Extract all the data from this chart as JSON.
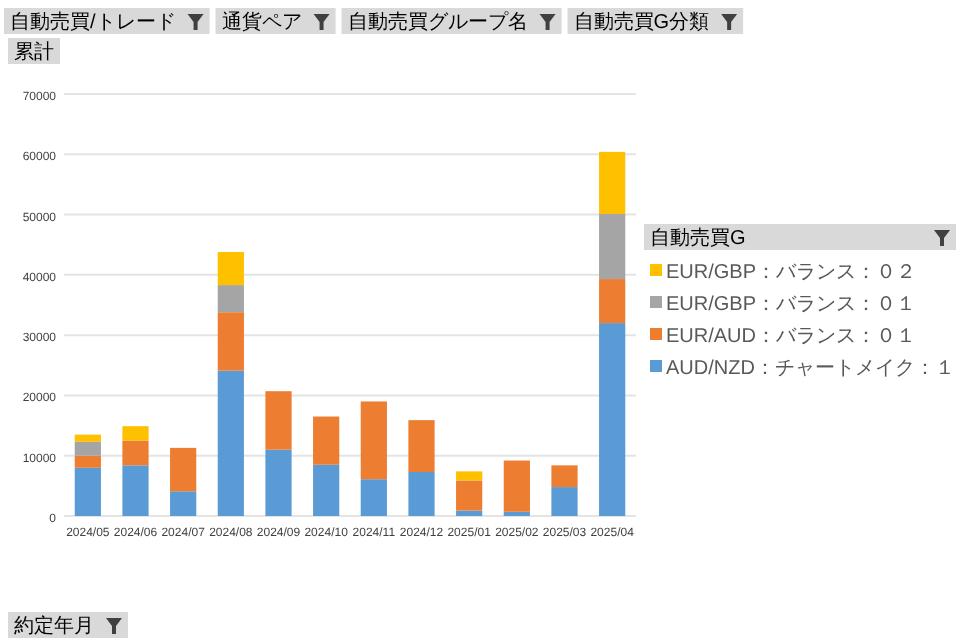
{
  "chart_data": {
    "type": "bar",
    "stacked": true,
    "categories": [
      "2024/05",
      "2024/06",
      "2024/07",
      "2024/08",
      "2024/09",
      "2024/10",
      "2024/11",
      "2024/12",
      "2025/01",
      "2025/02",
      "2025/03",
      "2025/04"
    ],
    "series": [
      {
        "name": "AUD/NZD：チャートメイク：１",
        "color": "#5b9bd5",
        "values": [
          8000,
          8400,
          4100,
          24100,
          11000,
          8500,
          6100,
          7300,
          900,
          700,
          4800,
          32000
        ]
      },
      {
        "name": "EUR/AUD：バランス：０１",
        "color": "#ed7d31",
        "values": [
          2000,
          4100,
          7200,
          9700,
          9700,
          8000,
          12900,
          8600,
          5000,
          8500,
          3600,
          7300
        ]
      },
      {
        "name": "EUR/GBP：バランス：０１",
        "color": "#a5a5a5",
        "values": [
          2300,
          null,
          null,
          4500,
          null,
          null,
          null,
          null,
          null,
          null,
          null,
          10800
        ]
      },
      {
        "name": "EUR/GBP：バランス：０２",
        "color": "#ffc000",
        "values": [
          1200,
          2400,
          null,
          5500,
          null,
          null,
          null,
          null,
          1500,
          null,
          null,
          10300
        ]
      }
    ],
    "ylim": [
      0,
      70000
    ],
    "yticks": [
      0,
      10000,
      20000,
      30000,
      40000,
      50000,
      60000,
      70000
    ],
    "grid": "y",
    "legend": "right",
    "legend_title": "自動売買G",
    "annotations": [
      "自動売買/トレード",
      "通貨ペア",
      "自動売買グループ名",
      "自動売買G分類",
      "累計",
      "約定年月"
    ]
  }
}
